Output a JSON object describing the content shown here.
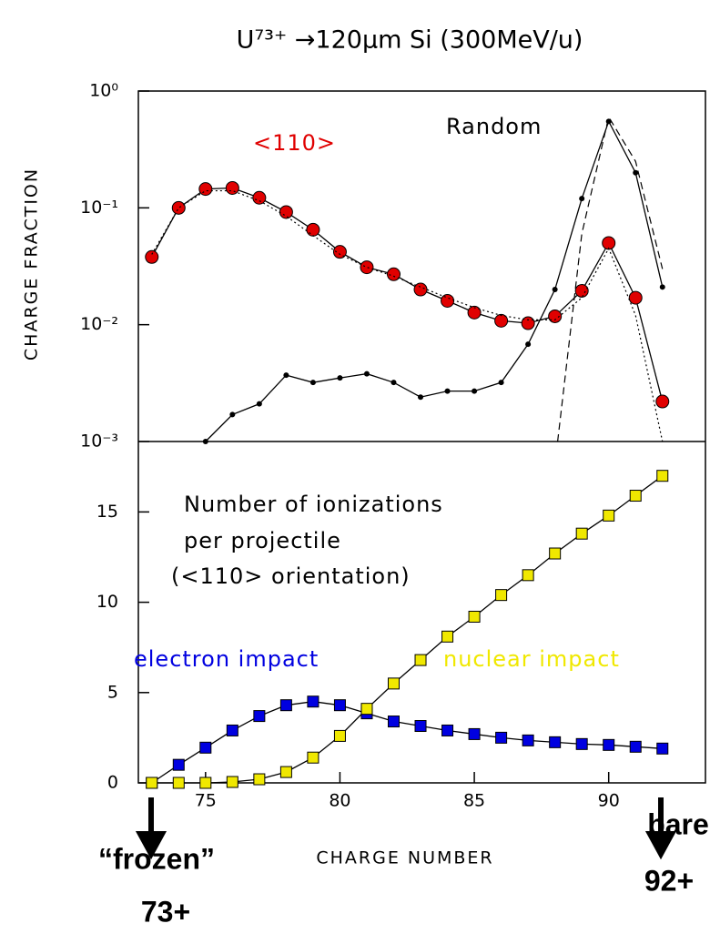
{
  "chart_data": [
    {
      "type": "line",
      "title": "U⁷³⁺ →120μm Si (300MeV/u)",
      "ylabel": "CHARGE FRACTION",
      "log_scale": true,
      "x": [
        73,
        74,
        75,
        76,
        77,
        78,
        79,
        80,
        81,
        82,
        83,
        84,
        85,
        86,
        87,
        88,
        89,
        90,
        91,
        92
      ],
      "xlim": [
        72.5,
        93.6
      ],
      "ylim": [
        0.001,
        1
      ],
      "yticks": [
        {
          "value": 1,
          "label": "10⁰"
        },
        {
          "value": 0.1,
          "label": "10⁻¹"
        },
        {
          "value": 0.01,
          "label": "10⁻²"
        },
        {
          "value": 0.001,
          "label": "10⁻³"
        }
      ],
      "series": [
        {
          "name": "<110>",
          "color": "#e00000",
          "marker": "circle",
          "style": "solid",
          "values": [
            0.038,
            0.1,
            0.145,
            0.148,
            0.122,
            0.092,
            0.065,
            0.042,
            0.031,
            0.027,
            0.02,
            0.016,
            0.0127,
            0.0108,
            0.0103,
            0.0118,
            0.0195,
            0.05,
            0.017,
            0.0022
          ]
        },
        {
          "name": "Random",
          "color": "#000000",
          "marker": "dot",
          "style": "solid",
          "values": [
            null,
            null,
            0.001,
            0.0017,
            0.0021,
            0.0037,
            0.0032,
            0.0035,
            0.0038,
            0.0032,
            0.0024,
            0.0027,
            0.0027,
            0.0032,
            0.0068,
            0.02,
            0.12,
            0.55,
            0.2,
            0.021
          ]
        },
        {
          "color": "#000000",
          "marker": "none",
          "style": "dotted",
          "values": [
            0.04,
            0.1,
            0.14,
            0.14,
            0.115,
            0.085,
            0.058,
            0.04,
            0.031,
            0.026,
            0.021,
            0.017,
            0.014,
            0.012,
            0.011,
            0.011,
            0.017,
            0.045,
            0.012,
            0.001
          ]
        },
        {
          "color": "#000000",
          "marker": "none",
          "style": "dashed",
          "x": [
            88.1,
            89,
            90,
            91,
            92
          ],
          "values": [
            0.001,
            0.06,
            0.6,
            0.25,
            0.03
          ]
        }
      ],
      "annotations": [
        {
          "text": "<110>",
          "color": "#e00000"
        },
        {
          "text": "Random",
          "color": "#000000"
        }
      ]
    },
    {
      "type": "line",
      "xlabel": "CHARGE NUMBER",
      "x": [
        73,
        74,
        75,
        76,
        77,
        78,
        79,
        80,
        81,
        82,
        83,
        84,
        85,
        86,
        87,
        88,
        89,
        90,
        91,
        92
      ],
      "xlim": [
        72.5,
        93.6
      ],
      "ylim": [
        0,
        18.9
      ],
      "xticks": [
        75,
        80,
        85,
        90
      ],
      "yticks": [
        0,
        5,
        10,
        15
      ],
      "series": [
        {
          "name": "electron impact",
          "color": "#0000e0",
          "marker": "square",
          "style": "solid",
          "values": [
            0,
            1.0,
            1.95,
            2.9,
            3.7,
            4.3,
            4.5,
            4.3,
            3.85,
            3.4,
            3.15,
            2.9,
            2.7,
            2.5,
            2.35,
            2.25,
            2.15,
            2.1,
            2.0,
            1.9
          ]
        },
        {
          "name": "nuclear impact",
          "color": "#f0e800",
          "marker": "square",
          "style": "solid",
          "values": [
            0,
            0,
            0,
            0.05,
            0.2,
            0.6,
            1.4,
            2.6,
            4.1,
            5.5,
            6.8,
            8.1,
            9.2,
            10.4,
            11.5,
            12.7,
            13.8,
            14.8,
            15.9,
            17.0
          ]
        }
      ],
      "annotations": [
        {
          "text": "Number of ionizations",
          "color": "#000000"
        },
        {
          "text": "per projectile",
          "color": "#000000"
        },
        {
          "text": "(<110> orientation)",
          "color": "#000000"
        },
        {
          "text": "“frozen”",
          "color": "#000000"
        },
        {
          "text": "73+",
          "color": "#000000"
        },
        {
          "text": "bare",
          "color": "#000000"
        },
        {
          "text": "92+",
          "color": "#000000"
        }
      ]
    }
  ]
}
